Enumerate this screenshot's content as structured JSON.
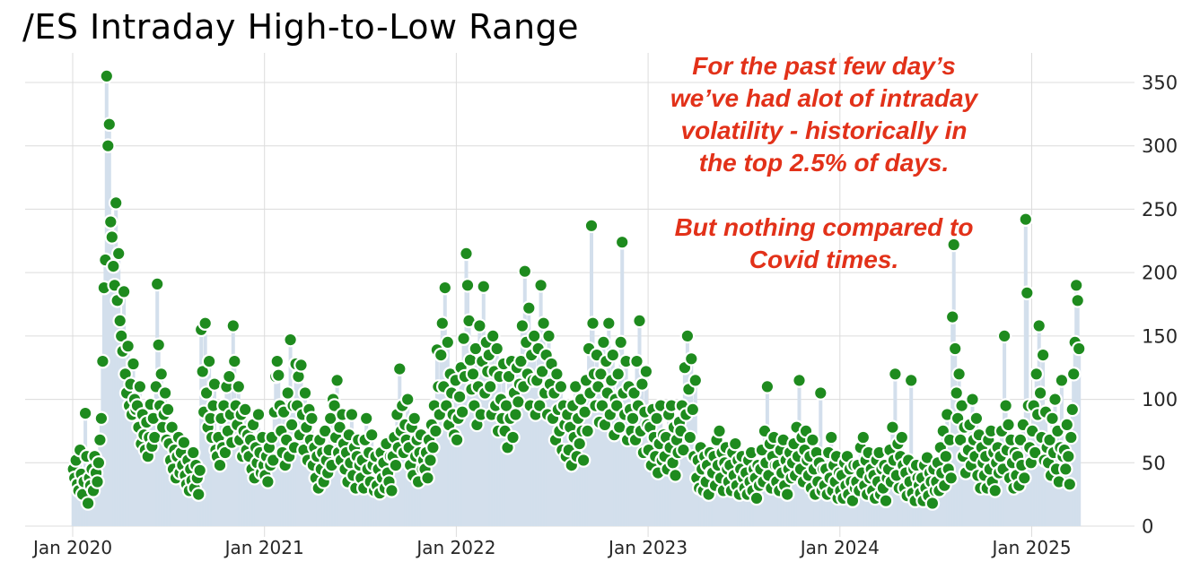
{
  "title": "/ES Intraday High-to-Low Range",
  "annotation": {
    "color": "#e23119",
    "lines_top": [
      "For the past few day’s",
      "we’ve had alot of intraday",
      "volatility - historically in",
      "the top 2.5% of days."
    ],
    "lines_bottom": [
      "But nothing compared to",
      "Covid times."
    ]
  },
  "chart_data": {
    "type": "scatter",
    "title": "/ES Intraday High-to-Low Range",
    "xlabel": "",
    "ylabel": "",
    "ylim": [
      0,
      370
    ],
    "y_ticks": [
      0,
      50,
      100,
      150,
      200,
      250,
      300,
      350
    ],
    "x_tick_labels": [
      "Jan 2020",
      "Jan 2021",
      "Jan 2022",
      "Jan 2023",
      "Jan 2024",
      "Jan 2025"
    ],
    "grid": true,
    "legend": "none",
    "marker_style": "green dot with white edge on light-blue stem",
    "colors": {
      "marker": "#1e8b1e",
      "marker_edge": "#ffffff",
      "stem": "#d3dfec",
      "grid": "#dcdcdc"
    },
    "series": [
      {
        "month": "2020-01",
        "values": [
          45,
          38,
          52,
          33,
          28,
          60,
          41,
          25,
          35,
          89,
          55,
          18
        ]
      },
      {
        "month": "2020-02",
        "values": [
          38,
          32,
          45,
          28,
          55,
          42,
          35,
          50,
          68,
          85,
          130,
          188
        ]
      },
      {
        "month": "2020-03",
        "values": [
          210,
          355,
          300,
          317,
          240,
          228,
          205,
          190,
          255,
          178,
          215,
          162
        ]
      },
      {
        "month": "2020-04",
        "values": [
          150,
          138,
          185,
          120,
          105,
          142,
          95,
          112,
          88,
          128,
          100,
          92
        ]
      },
      {
        "month": "2020-05",
        "values": [
          95,
          78,
          110,
          65,
          88,
          72,
          60,
          82,
          55,
          70,
          96,
          63
        ]
      },
      {
        "month": "2020-06",
        "values": [
          85,
          70,
          110,
          191,
          143,
          95,
          120,
          78,
          88,
          105,
          68,
          92
        ]
      },
      {
        "month": "2020-07",
        "values": [
          65,
          52,
          78,
          45,
          60,
          38,
          55,
          70,
          42,
          58,
          48,
          66
        ]
      },
      {
        "month": "2020-08",
        "values": [
          40,
          33,
          52,
          28,
          45,
          36,
          58,
          30,
          48,
          38,
          25,
          44
        ]
      },
      {
        "month": "2020-09",
        "values": [
          155,
          122,
          90,
          160,
          105,
          78,
          130,
          85,
          70,
          95,
          112,
          60
        ]
      },
      {
        "month": "2020-10",
        "values": [
          55,
          70,
          48,
          85,
          62,
          95,
          58,
          110,
          75,
          118,
          88,
          66
        ]
      },
      {
        "month": "2020-11",
        "values": [
          158,
          130,
          95,
          80,
          110,
          68,
          88,
          55,
          75,
          92,
          60,
          72
        ]
      },
      {
        "month": "2020-12",
        "values": [
          55,
          68,
          45,
          80,
          38,
          62,
          50,
          88,
          58,
          42,
          70,
          48
        ]
      },
      {
        "month": "2021-01",
        "values": [
          40,
          55,
          35,
          62,
          48,
          70,
          52,
          90,
          118,
          130,
          119,
          95
        ]
      },
      {
        "month": "2021-02",
        "values": [
          75,
          58,
          90,
          48,
          68,
          105,
          55,
          147,
          80,
          95,
          62,
          128
        ]
      },
      {
        "month": "2021-03",
        "values": [
          95,
          118,
          72,
          127,
          88,
          60,
          105,
          78,
          52,
          92,
          68,
          85
        ]
      },
      {
        "month": "2021-04",
        "values": [
          48,
          62,
          38,
          55,
          30,
          68,
          45,
          58,
          35,
          75,
          52,
          42
        ]
      },
      {
        "month": "2021-05",
        "values": [
          60,
          85,
          48,
          100,
          95,
          70,
          115,
          58,
          78,
          52,
          88,
          65
        ]
      },
      {
        "month": "2021-06",
        "values": [
          45,
          58,
          35,
          72,
          50,
          88,
          40,
          62,
          30,
          55,
          68,
          48
        ]
      },
      {
        "month": "2021-07",
        "values": [
          38,
          52,
          30,
          68,
          85,
          45,
          58,
          35,
          72,
          48,
          28,
          55
        ]
      },
      {
        "month": "2021-08",
        "values": [
          32,
          45,
          26,
          58,
          38,
          50,
          30,
          65,
          42,
          35,
          55,
          28
        ]
      },
      {
        "month": "2021-09",
        "values": [
          55,
          70,
          48,
          88,
          62,
          124,
          75,
          95,
          58,
          80,
          68,
          100
        ]
      },
      {
        "month": "2021-10",
        "values": [
          62,
          48,
          78,
          40,
          85,
          55,
          68,
          35,
          58,
          72,
          45,
          52
        ]
      },
      {
        "month": "2021-11",
        "values": [
          45,
          58,
          38,
          68,
          52,
          80,
          62,
          95,
          75,
          139,
          110,
          88
        ]
      },
      {
        "month": "2021-12",
        "values": [
          135,
          160,
          110,
          188,
          95,
          145,
          80,
          120,
          105,
          88,
          72,
          115
        ]
      },
      {
        "month": "2022-01",
        "values": [
          68,
          85,
          102,
          125,
          90,
          148,
          118,
          215,
          190,
          162,
          131,
          108
        ]
      },
      {
        "month": "2022-02",
        "values": [
          120,
          95,
          140,
          80,
          110,
          158,
          88,
          130,
          189,
          105,
          145,
          122
        ]
      },
      {
        "month": "2022-03",
        "values": [
          135,
          110,
          88,
          150,
          122,
          95,
          140,
          75,
          118,
          100,
          85,
          128
        ]
      },
      {
        "month": "2022-04",
        "values": [
          75,
          95,
          62,
          118,
          85,
          130,
          70,
          105,
          88,
          125,
          98,
          112
        ]
      },
      {
        "month": "2022-05",
        "values": [
          130,
          158,
          110,
          201,
          145,
          120,
          172,
          95,
          135,
          115,
          150,
          88
        ]
      },
      {
        "month": "2022-06",
        "values": [
          115,
          140,
          95,
          190,
          122,
          160,
          105,
          135,
          88,
          150,
          112,
          128
        ]
      },
      {
        "month": "2022-07",
        "values": [
          85,
          105,
          68,
          120,
          92,
          75,
          110,
          60,
          95,
          80,
          55,
          88
        ]
      },
      {
        "month": "2022-08",
        "values": [
          60,
          78,
          48,
          95,
          70,
          110,
          55,
          85,
          65,
          100,
          75,
          52
        ]
      },
      {
        "month": "2022-09",
        "values": [
          90,
          115,
          75,
          140,
          105,
          237,
          160,
          120,
          95,
          135,
          110,
          82
        ]
      },
      {
        "month": "2022-10",
        "values": [
          120,
          95,
          145,
          80,
          130,
          105,
          160,
          88,
          115,
          135,
          72,
          100
        ]
      },
      {
        "month": "2022-11",
        "values": [
          95,
          120,
          78,
          145,
          224,
          105,
          88,
          130,
          68,
          110,
          92,
          75
        ]
      },
      {
        "month": "2022-12",
        "values": [
          85,
          105,
          68,
          130,
          95,
          162,
          75,
          112,
          58,
          90,
          122,
          80
        ]
      },
      {
        "month": "2023-01",
        "values": [
          60,
          78,
          48,
          92,
          70,
          55,
          85,
          42,
          65,
          95,
          52,
          72
        ]
      },
      {
        "month": "2023-02",
        "values": [
          55,
          70,
          45,
          88,
          62,
          95,
          50,
          78,
          40,
          68,
          58,
          82
        ]
      },
      {
        "month": "2023-03",
        "values": [
          75,
          95,
          60,
          125,
          88,
          150,
          108,
          70,
          132,
          92,
          55,
          115
        ]
      },
      {
        "month": "2023-04",
        "values": [
          38,
          52,
          30,
          62,
          45,
          28,
          55,
          35,
          48,
          25,
          58,
          42
        ]
      },
      {
        "month": "2023-05",
        "values": [
          42,
          55,
          32,
          68,
          48,
          75,
          38,
          58,
          28,
          50,
          62,
          45
        ]
      },
      {
        "month": "2023-06",
        "values": [
          35,
          48,
          28,
          58,
          40,
          65,
          32,
          52,
          25,
          45,
          55,
          38
        ]
      },
      {
        "month": "2023-07",
        "values": [
          30,
          42,
          25,
          52,
          35,
          58,
          28,
          45,
          38,
          22,
          48,
          32
        ]
      },
      {
        "month": "2023-08",
        "values": [
          45,
          60,
          35,
          75,
          50,
          110,
          40,
          65,
          30,
          55,
          70,
          48
        ]
      },
      {
        "month": "2023-09",
        "values": [
          35,
          48,
          28,
          60,
          42,
          68,
          32,
          52,
          25,
          45,
          58,
          38
        ]
      },
      {
        "month": "2023-10",
        "values": [
          50,
          65,
          40,
          78,
          55,
          115,
          45,
          70,
          35,
          60,
          75,
          52
        ]
      },
      {
        "month": "2023-11",
        "values": [
          40,
          55,
          30,
          68,
          45,
          25,
          58,
          35,
          50,
          105,
          28,
          45
        ]
      },
      {
        "month": "2023-12",
        "values": [
          32,
          45,
          25,
          58,
          38,
          70,
          28,
          48,
          35,
          55,
          22,
          42
        ]
      },
      {
        "month": "2024-01",
        "values": [
          28,
          40,
          22,
          50,
          32,
          55,
          25,
          45,
          35,
          20,
          48,
          30
        ]
      },
      {
        "month": "2024-02",
        "values": [
          35,
          48,
          28,
          62,
          42,
          70,
          32,
          52,
          25,
          58,
          38,
          45
        ]
      },
      {
        "month": "2024-03",
        "values": [
          28,
          40,
          22,
          52,
          35,
          58,
          25,
          45,
          30,
          48,
          20,
          38
        ]
      },
      {
        "month": "2024-04",
        "values": [
          45,
          60,
          35,
          78,
          52,
          120,
          40,
          65,
          30,
          55,
          70,
          48
        ]
      },
      {
        "month": "2024-05",
        "values": [
          30,
          42,
          24,
          52,
          35,
          115,
          26,
          45,
          20,
          48,
          38,
          32
        ]
      },
      {
        "month": "2024-06",
        "values": [
          26,
          38,
          20,
          48,
          30,
          54,
          24,
          42,
          35,
          18,
          45,
          28
        ]
      },
      {
        "month": "2024-07",
        "values": [
          35,
          50,
          28,
          62,
          42,
          75,
          32,
          55,
          88,
          45,
          68,
          38
        ]
      },
      {
        "month": "2024-08",
        "values": [
          165,
          222,
          140,
          105,
          85,
          120,
          68,
          95,
          55,
          78,
          42,
          60
        ]
      },
      {
        "month": "2024-09",
        "values": [
          60,
          80,
          48,
          100,
          68,
          55,
          85,
          40,
          72,
          30,
          62,
          50
        ]
      },
      {
        "month": "2024-10",
        "values": [
          40,
          55,
          30,
          68,
          45,
          75,
          35,
          58,
          28,
          50,
          62,
          42
        ]
      },
      {
        "month": "2024-11",
        "values": [
          55,
          75,
          45,
          150,
          95,
          60,
          80,
          38,
          68,
          50,
          30,
          58
        ]
      },
      {
        "month": "2024-12",
        "values": [
          40,
          55,
          32,
          68,
          48,
          80,
          38,
          242,
          184,
          95,
          62,
          50
        ]
      },
      {
        "month": "2025-01",
        "values": [
          75,
          95,
          58,
          120,
          88,
          158,
          105,
          70,
          135,
          52,
          90,
          62
        ]
      },
      {
        "month": "2025-02",
        "values": [
          50,
          68,
          40,
          85,
          58,
          100,
          45,
          75,
          35,
          62,
          115,
          55
        ]
      },
      {
        "month": "2025-03",
        "values": [
          60,
          45,
          80,
          55,
          33,
          70,
          92,
          120,
          145,
          190,
          178,
          140
        ]
      }
    ]
  }
}
